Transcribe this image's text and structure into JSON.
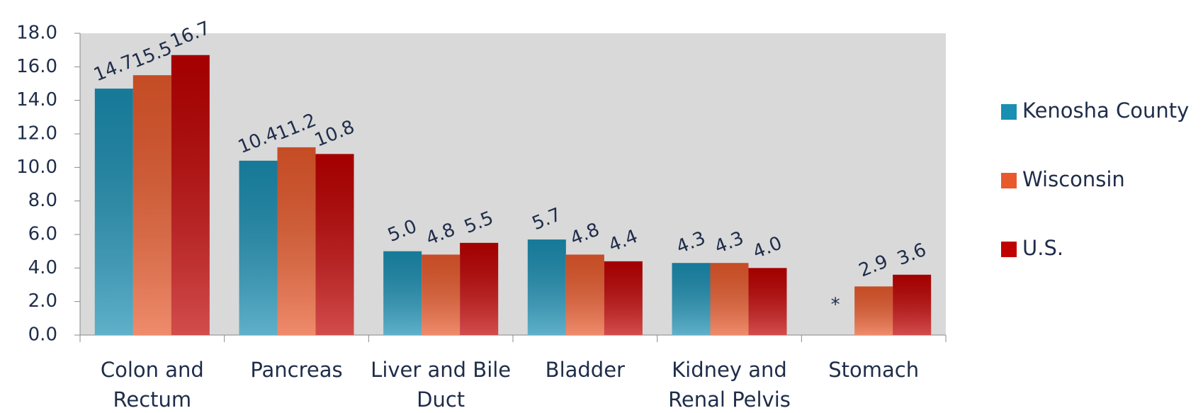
{
  "chart_data": {
    "type": "bar",
    "categories": [
      "Colon and Rectum",
      "Pancreas",
      "Liver and Bile Duct",
      "Bladder",
      "Kidney and Renal Pelvis",
      "Stomach"
    ],
    "series": [
      {
        "name": "Kenosha County",
        "color": "#1b8fb3",
        "values": [
          14.7,
          10.4,
          5.0,
          5.7,
          4.3,
          null
        ],
        "value_labels": [
          "14.7",
          "10.4",
          "5.0",
          "5.7",
          "4.3",
          "*"
        ]
      },
      {
        "name": "Wisconsin",
        "color": "#e85a2c",
        "values": [
          15.5,
          11.2,
          4.8,
          4.8,
          4.3,
          2.9
        ],
        "value_labels": [
          "15.5",
          "11.2",
          "4.8",
          "4.8",
          "4.3",
          "2.9"
        ]
      },
      {
        "name": "U.S.",
        "color": "#c00000",
        "values": [
          16.7,
          10.8,
          5.5,
          4.4,
          4.0,
          3.6
        ],
        "value_labels": [
          "16.7",
          "10.8",
          "5.5",
          "4.4",
          "4.0",
          "3.6"
        ]
      }
    ],
    "ylim": [
      0,
      18
    ],
    "yticks": [
      {
        "value": 0,
        "label": "0.0"
      },
      {
        "value": 2,
        "label": "2.0"
      },
      {
        "value": 4,
        "label": "4.0"
      },
      {
        "value": 6,
        "label": "6.0"
      },
      {
        "value": 8,
        "label": "8.0"
      },
      {
        "value": 10,
        "label": "10.0"
      },
      {
        "value": 12,
        "label": "12.0"
      },
      {
        "value": 14,
        "label": "14.0"
      },
      {
        "value": 16,
        "label": "16.0"
      },
      {
        "value": 18,
        "label": "18.0"
      }
    ],
    "legend": "right"
  }
}
